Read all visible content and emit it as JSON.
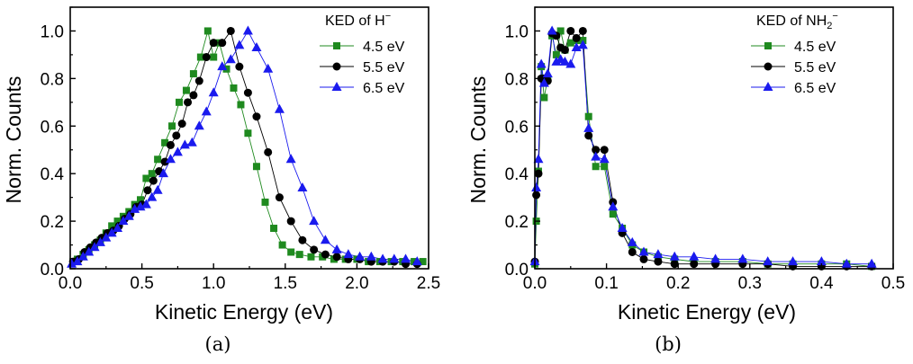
{
  "chart_data": [
    {
      "type": "line",
      "caption": "(a)",
      "xlabel": "Kinetic Energy (eV)",
      "ylabel": "Norm. Counts",
      "xlim": [
        0.0,
        2.5
      ],
      "ylim": [
        0.0,
        1.1
      ],
      "xticks": [
        "0.0",
        "0.5",
        "1.0",
        "1.5",
        "2.0",
        "2.5"
      ],
      "yticks": [
        "0.0",
        "0.2",
        "0.4",
        "0.6",
        "0.8",
        "1.0"
      ],
      "legend": {
        "title_main": "KED of H",
        "title_sup": "−",
        "title_sub": "",
        "placement": "top-right"
      },
      "grid": false,
      "series": [
        {
          "name": "4.5 eV",
          "color": "#1f8a1f",
          "marker": "square",
          "x": [
            0.02,
            0.05,
            0.09,
            0.13,
            0.17,
            0.21,
            0.25,
            0.29,
            0.33,
            0.37,
            0.41,
            0.45,
            0.49,
            0.53,
            0.57,
            0.61,
            0.66,
            0.71,
            0.76,
            0.81,
            0.86,
            0.91,
            0.96,
            1.0,
            1.04,
            1.09,
            1.14,
            1.19,
            1.24,
            1.3,
            1.36,
            1.42,
            1.48,
            1.54,
            1.6,
            1.68,
            1.76,
            1.84,
            1.92,
            2.0,
            2.08,
            2.16,
            2.24,
            2.32,
            2.4,
            2.46
          ],
          "y": [
            0.03,
            0.04,
            0.06,
            0.08,
            0.1,
            0.12,
            0.15,
            0.18,
            0.2,
            0.22,
            0.24,
            0.27,
            0.29,
            0.38,
            0.4,
            0.46,
            0.53,
            0.6,
            0.7,
            0.75,
            0.82,
            0.89,
            1.0,
            0.89,
            0.95,
            0.84,
            0.76,
            0.69,
            0.57,
            0.43,
            0.28,
            0.17,
            0.1,
            0.07,
            0.06,
            0.05,
            0.05,
            0.04,
            0.04,
            0.04,
            0.03,
            0.03,
            0.03,
            0.03,
            0.03,
            0.03
          ]
        },
        {
          "name": "5.5 eV",
          "color": "#000000",
          "marker": "circle",
          "x": [
            0.02,
            0.06,
            0.1,
            0.14,
            0.18,
            0.22,
            0.26,
            0.3,
            0.34,
            0.38,
            0.42,
            0.46,
            0.5,
            0.54,
            0.58,
            0.62,
            0.66,
            0.7,
            0.74,
            0.78,
            0.82,
            0.86,
            0.9,
            0.95,
            1.0,
            1.06,
            1.12,
            1.18,
            1.24,
            1.3,
            1.38,
            1.46,
            1.54,
            1.62,
            1.7,
            1.78,
            1.86,
            1.94,
            2.02,
            2.1,
            2.18,
            2.26,
            2.34,
            2.42
          ],
          "y": [
            0.03,
            0.04,
            0.07,
            0.09,
            0.11,
            0.13,
            0.15,
            0.16,
            0.18,
            0.21,
            0.23,
            0.26,
            0.27,
            0.33,
            0.37,
            0.41,
            0.45,
            0.52,
            0.56,
            0.61,
            0.7,
            0.73,
            0.79,
            0.89,
            0.95,
            0.95,
            1.0,
            0.85,
            0.74,
            0.64,
            0.49,
            0.3,
            0.2,
            0.12,
            0.08,
            0.06,
            0.05,
            0.04,
            0.04,
            0.03,
            0.03,
            0.03,
            0.02,
            0.02
          ]
        },
        {
          "name": "6.5 eV",
          "color": "#1a1aee",
          "marker": "triangle",
          "x": [
            0.01,
            0.05,
            0.09,
            0.13,
            0.17,
            0.21,
            0.25,
            0.29,
            0.33,
            0.37,
            0.41,
            0.45,
            0.49,
            0.53,
            0.57,
            0.61,
            0.65,
            0.7,
            0.75,
            0.8,
            0.85,
            0.9,
            0.95,
            1.0,
            1.06,
            1.12,
            1.18,
            1.24,
            1.3,
            1.38,
            1.46,
            1.54,
            1.62,
            1.7,
            1.78,
            1.86,
            1.94,
            2.02,
            2.1,
            2.18,
            2.26,
            2.34,
            2.42
          ],
          "y": [
            0.02,
            0.03,
            0.05,
            0.07,
            0.09,
            0.11,
            0.13,
            0.15,
            0.17,
            0.2,
            0.22,
            0.25,
            0.26,
            0.27,
            0.3,
            0.33,
            0.4,
            0.46,
            0.49,
            0.52,
            0.53,
            0.6,
            0.66,
            0.74,
            0.85,
            0.88,
            0.94,
            1.0,
            0.93,
            0.84,
            0.67,
            0.46,
            0.34,
            0.2,
            0.12,
            0.08,
            0.06,
            0.05,
            0.05,
            0.04,
            0.04,
            0.04,
            0.03
          ]
        }
      ]
    },
    {
      "type": "line",
      "caption": "(b)",
      "xlabel": "Kinetic Energy (eV)",
      "ylabel": "Norm. Counts",
      "xlim": [
        0.0,
        0.5
      ],
      "ylim": [
        0.0,
        1.1
      ],
      "xticks": [
        "0.0",
        "0.1",
        "0.2",
        "0.3",
        "0.4",
        "0.5"
      ],
      "yticks": [
        "0.0",
        "0.2",
        "0.4",
        "0.6",
        "0.8",
        "1.0"
      ],
      "legend": {
        "title_main": "KED of NH",
        "title_sup": "−",
        "title_sub": "2",
        "placement": "top-right"
      },
      "grid": false,
      "series": [
        {
          "name": "4.5 eV",
          "color": "#1f8a1f",
          "marker": "square",
          "x": [
            0.0,
            0.002,
            0.005,
            0.009,
            0.013,
            0.018,
            0.024,
            0.03,
            0.036,
            0.042,
            0.05,
            0.058,
            0.067,
            0.075,
            0.085,
            0.097,
            0.109,
            0.122,
            0.136,
            0.152,
            0.172,
            0.195,
            0.222,
            0.252,
            0.29,
            0.325,
            0.36,
            0.4,
            0.435,
            0.47
          ],
          "y": [
            0.02,
            0.2,
            0.41,
            0.85,
            0.72,
            0.8,
            0.98,
            0.9,
            1.0,
            0.92,
            0.95,
            0.96,
            0.96,
            0.64,
            0.43,
            0.43,
            0.23,
            0.17,
            0.1,
            0.07,
            0.05,
            0.04,
            0.03,
            0.03,
            0.03,
            0.02,
            0.02,
            0.02,
            0.02,
            0.01
          ]
        },
        {
          "name": "5.5 eV",
          "color": "#000000",
          "marker": "circle",
          "x": [
            0.0,
            0.002,
            0.005,
            0.009,
            0.013,
            0.018,
            0.024,
            0.03,
            0.036,
            0.042,
            0.05,
            0.058,
            0.067,
            0.075,
            0.085,
            0.097,
            0.109,
            0.122,
            0.136,
            0.152,
            0.172,
            0.195,
            0.222,
            0.252,
            0.29,
            0.325,
            0.36,
            0.4,
            0.435,
            0.47
          ],
          "y": [
            0.03,
            0.31,
            0.4,
            0.8,
            0.8,
            0.79,
            0.99,
            0.98,
            0.93,
            0.92,
            1.0,
            0.97,
            1.0,
            0.56,
            0.5,
            0.5,
            0.28,
            0.15,
            0.07,
            0.04,
            0.03,
            0.02,
            0.02,
            0.02,
            0.02,
            0.02,
            0.01,
            0.01,
            0.01,
            0.01
          ]
        },
        {
          "name": "6.5 eV",
          "color": "#1a1aee",
          "marker": "triangle",
          "x": [
            0.0,
            0.002,
            0.005,
            0.009,
            0.013,
            0.018,
            0.024,
            0.03,
            0.036,
            0.042,
            0.05,
            0.058,
            0.067,
            0.075,
            0.085,
            0.097,
            0.109,
            0.122,
            0.136,
            0.152,
            0.172,
            0.195,
            0.222,
            0.252,
            0.29,
            0.325,
            0.36,
            0.4,
            0.435,
            0.47
          ],
          "y": [
            0.03,
            0.34,
            0.46,
            0.86,
            0.78,
            0.82,
            1.0,
            0.87,
            0.88,
            0.87,
            0.86,
            0.93,
            0.94,
            0.59,
            0.47,
            0.46,
            0.26,
            0.17,
            0.11,
            0.07,
            0.06,
            0.05,
            0.05,
            0.04,
            0.04,
            0.03,
            0.03,
            0.03,
            0.02,
            0.02
          ]
        }
      ]
    }
  ]
}
